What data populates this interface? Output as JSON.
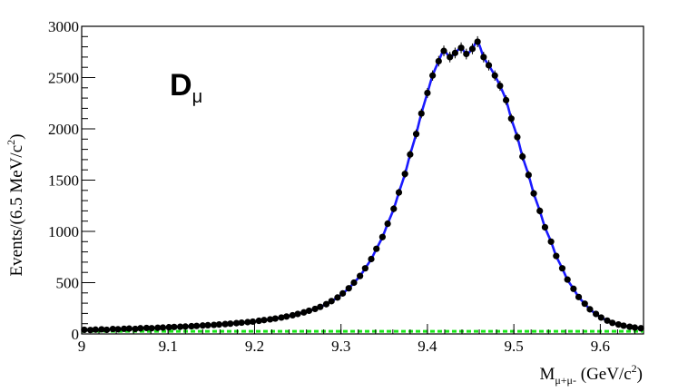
{
  "chart_data": {
    "type": "scatter",
    "annotation": {
      "main": "D",
      "sub": "μ"
    },
    "xlabel": {
      "main": "M",
      "sub": "μ+μ-",
      "unit": " (GeV/c",
      "sup": "2",
      "close": ")"
    },
    "ylabel": {
      "text": "Events/(6.5 MeV/c",
      "sup": "2",
      "close": ")"
    },
    "xlim": [
      9.0,
      9.65
    ],
    "ylim": [
      0,
      3000
    ],
    "x_ticks": [
      9.0,
      9.1,
      9.2,
      9.3,
      9.4,
      9.5,
      9.6
    ],
    "x_tick_labels": [
      "9",
      "9.1",
      "9.2",
      "9.3",
      "9.4",
      "9.5",
      "9.6"
    ],
    "y_ticks": [
      0,
      500,
      1000,
      1500,
      2000,
      2500,
      3000
    ],
    "y_tick_labels": [
      "0",
      "500",
      "1000",
      "1500",
      "2000",
      "2500",
      "3000"
    ],
    "grid": false,
    "colors": {
      "data": "#000000",
      "fit": "#1a1aff",
      "background": "#19e619"
    },
    "series": [
      {
        "kind": "points",
        "x": [
          9.003,
          9.01,
          9.016,
          9.023,
          9.029,
          9.036,
          9.042,
          9.049,
          9.055,
          9.062,
          9.068,
          9.075,
          9.081,
          9.088,
          9.094,
          9.101,
          9.107,
          9.114,
          9.12,
          9.127,
          9.133,
          9.14,
          9.146,
          9.153,
          9.159,
          9.166,
          9.172,
          9.179,
          9.185,
          9.192,
          9.198,
          9.205,
          9.211,
          9.218,
          9.224,
          9.231,
          9.237,
          9.244,
          9.25,
          9.257,
          9.263,
          9.27,
          9.276,
          9.283,
          9.289,
          9.296,
          9.302,
          9.309,
          9.315,
          9.322,
          9.328,
          9.335,
          9.341,
          9.348,
          9.354,
          9.361,
          9.367,
          9.374,
          9.38,
          9.387,
          9.393,
          9.4,
          9.406,
          9.413,
          9.419,
          9.426,
          9.432,
          9.439,
          9.445,
          9.452,
          9.458,
          9.465,
          9.471,
          9.478,
          9.484,
          9.491,
          9.497,
          9.504,
          9.51,
          9.517,
          9.523,
          9.53,
          9.536,
          9.543,
          9.549,
          9.556,
          9.562,
          9.569,
          9.575,
          9.582,
          9.588,
          9.595,
          9.601,
          9.608,
          9.614,
          9.621,
          9.627,
          9.634,
          9.64,
          9.647
        ],
        "y": [
          40,
          38,
          42,
          45,
          40,
          48,
          46,
          50,
          52,
          49,
          55,
          58,
          56,
          60,
          62,
          65,
          68,
          70,
          72,
          75,
          78,
          82,
          85,
          88,
          92,
          96,
          100,
          105,
          110,
          115,
          120,
          128,
          135,
          142,
          150,
          160,
          170,
          182,
          195,
          210,
          226,
          244,
          264,
          290,
          320,
          355,
          395,
          445,
          500,
          565,
          640,
          730,
          830,
          945,
          1075,
          1220,
          1380,
          1560,
          1750,
          1950,
          2150,
          2350,
          2520,
          2660,
          2760,
          2700,
          2740,
          2790,
          2730,
          2780,
          2850,
          2700,
          2620,
          2520,
          2420,
          2280,
          2100,
          1920,
          1730,
          1550,
          1370,
          1200,
          1040,
          900,
          760,
          640,
          530,
          440,
          360,
          295,
          240,
          195,
          160,
          130,
          108,
          92,
          80,
          70,
          62,
          55
        ]
      },
      {
        "kind": "fit",
        "name": "",
        "color": "#1a1aff"
      },
      {
        "kind": "background",
        "value": 25,
        "color": "#19e619"
      }
    ]
  }
}
